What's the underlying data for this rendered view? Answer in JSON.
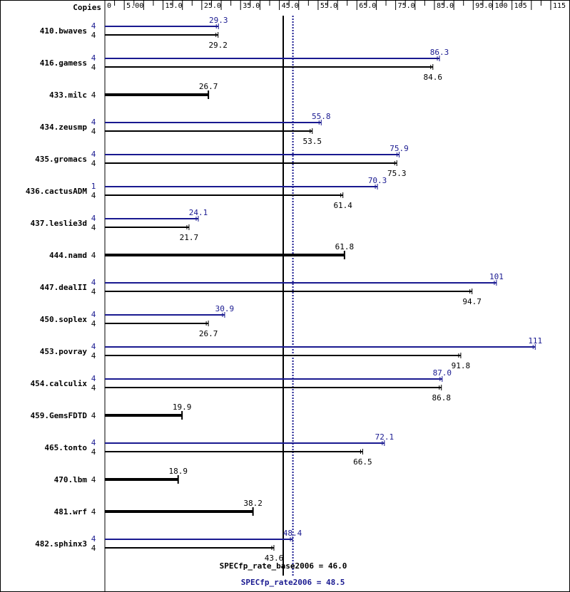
{
  "chart_data": {
    "type": "bar",
    "header_label": "Copies",
    "x_ticks": [
      "0",
      "5.00",
      "15.0",
      "25.0",
      "35.0",
      "45.0",
      "55.0",
      "65.0",
      "75.0",
      "85.0",
      "95.0",
      "100",
      "105",
      "115"
    ],
    "xlim": [
      0,
      115
    ],
    "colors": {
      "peak": "#191990",
      "base": "#000000",
      "frame": "#000000"
    },
    "benchmarks": [
      {
        "name": "410.bwaves",
        "peak_copies": "4",
        "base_copies": "4",
        "peak": 29.3,
        "base": 29.2,
        "peak_label": "29.3",
        "base_label": "29.2"
      },
      {
        "name": "416.gamess",
        "peak_copies": "4",
        "base_copies": "4",
        "peak": 86.3,
        "base": 84.6,
        "peak_label": "86.3",
        "base_label": "84.6"
      },
      {
        "name": "433.milc",
        "base_copies": "4",
        "base": 26.7,
        "base_label": "26.7"
      },
      {
        "name": "434.zeusmp",
        "peak_copies": "4",
        "base_copies": "4",
        "peak": 55.8,
        "base": 53.5,
        "peak_label": "55.8",
        "base_label": "53.5"
      },
      {
        "name": "435.gromacs",
        "peak_copies": "4",
        "base_copies": "4",
        "peak": 75.9,
        "base": 75.3,
        "peak_label": "75.9",
        "base_label": "75.3"
      },
      {
        "name": "436.cactusADM",
        "peak_copies": "1",
        "base_copies": "4",
        "peak": 70.3,
        "base": 61.4,
        "peak_label": "70.3",
        "base_label": "61.4"
      },
      {
        "name": "437.leslie3d",
        "peak_copies": "4",
        "base_copies": "4",
        "peak": 24.1,
        "base": 21.7,
        "peak_label": "24.1",
        "base_label": "21.7"
      },
      {
        "name": "444.namd",
        "base_copies": "4",
        "base": 61.8,
        "base_label": "61.8"
      },
      {
        "name": "447.dealII",
        "peak_copies": "4",
        "base_copies": "4",
        "peak": 101,
        "base": 94.7,
        "peak_label": "101",
        "base_label": "94.7"
      },
      {
        "name": "450.soplex",
        "peak_copies": "4",
        "base_copies": "4",
        "peak": 30.9,
        "base": 26.7,
        "peak_label": "30.9",
        "base_label": "26.7"
      },
      {
        "name": "453.povray",
        "peak_copies": "4",
        "base_copies": "4",
        "peak": 111,
        "base": 91.8,
        "peak_label": "111",
        "base_label": "91.8"
      },
      {
        "name": "454.calculix",
        "peak_copies": "4",
        "base_copies": "4",
        "peak": 87.0,
        "base": 86.8,
        "peak_label": "87.0",
        "base_label": "86.8"
      },
      {
        "name": "459.GemsFDTD",
        "base_copies": "4",
        "base": 19.9,
        "base_label": "19.9"
      },
      {
        "name": "465.tonto",
        "peak_copies": "4",
        "base_copies": "4",
        "peak": 72.1,
        "base": 66.5,
        "peak_label": "72.1",
        "base_label": "66.5"
      },
      {
        "name": "470.lbm",
        "base_copies": "4",
        "base": 18.9,
        "base_label": "18.9"
      },
      {
        "name": "481.wrf",
        "base_copies": "4",
        "base": 38.2,
        "base_label": "38.2"
      },
      {
        "name": "482.sphinx3",
        "peak_copies": "4",
        "base_copies": "4",
        "peak": 48.4,
        "base": 43.6,
        "peak_label": "48.4",
        "base_label": "43.6"
      }
    ],
    "base_mean": {
      "value": 46.0,
      "label": "SPECfp_rate_base2006 = 46.0"
    },
    "peak_mean": {
      "value": 48.5,
      "label": "SPECfp_rate2006 = 48.5"
    }
  }
}
